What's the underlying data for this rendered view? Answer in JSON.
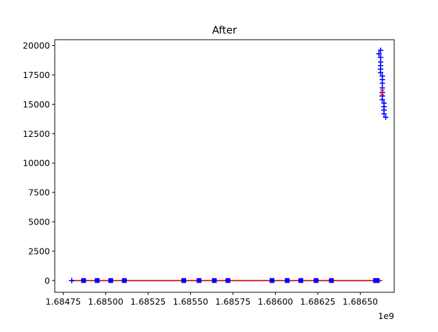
{
  "chart_data": {
    "type": "scatter",
    "title": "After",
    "xlabel": "",
    "ylabel": "",
    "x_offset_label": "1e9",
    "xlim": [
      1.6847,
      1.6867
    ],
    "ylim": [
      -1000,
      20500
    ],
    "grid": false,
    "x_ticks": [
      1.68475,
      1.685,
      1.68525,
      1.6855,
      1.68575,
      1.686,
      1.68625,
      1.6865
    ],
    "x_tick_labels": [
      "1.68475",
      "1.68500",
      "1.68525",
      "1.68550",
      "1.68575",
      "1.68600",
      "1.68625",
      "1.68650"
    ],
    "y_ticks": [
      0,
      2500,
      5000,
      7500,
      10000,
      12500,
      15000,
      17500,
      20000
    ],
    "y_tick_labels": [
      "0",
      "2500",
      "5000",
      "7500",
      "10000",
      "12500",
      "15000",
      "17500",
      "20000"
    ],
    "colors": {
      "line": "#d62728",
      "markers": "#0000ff",
      "axes": "#000000"
    },
    "series": [
      {
        "kind": "line",
        "color": "#d62728",
        "x": [
          1.6848,
          1.68663
        ],
        "y": [
          0,
          0
        ]
      },
      {
        "kind": "markers-square",
        "color": "#0000ff",
        "x": [
          1.68487,
          1.68495,
          1.68503,
          1.68511,
          1.68546,
          1.68555,
          1.68564,
          1.68572,
          1.68598,
          1.68607,
          1.68615,
          1.68624,
          1.68633,
          1.68659,
          1.6866
        ],
        "y": [
          0,
          0,
          0,
          0,
          0,
          0,
          0,
          0,
          0,
          0,
          0,
          0,
          0,
          0,
          0
        ]
      },
      {
        "kind": "markers-plus",
        "color": "#0000ff",
        "x": [
          1.6848,
          1.68662,
          1.68661,
          1.68662,
          1.68662,
          1.68662,
          1.68662,
          1.68662,
          1.68663,
          1.68663,
          1.68663,
          1.68663,
          1.68663,
          1.68663,
          1.68663,
          1.68664,
          1.68664,
          1.68664,
          1.68664,
          1.68665
        ],
        "y": [
          0,
          19600,
          19300,
          19000,
          18600,
          18300,
          18000,
          17700,
          17400,
          17100,
          16800,
          16400,
          16000,
          15700,
          15400,
          15100,
          14800,
          14500,
          14200,
          13900
        ]
      },
      {
        "kind": "markers-x",
        "color": "#d62728",
        "x": [
          1.68663,
          1.68663
        ],
        "y": [
          16100,
          15900
        ]
      }
    ]
  }
}
